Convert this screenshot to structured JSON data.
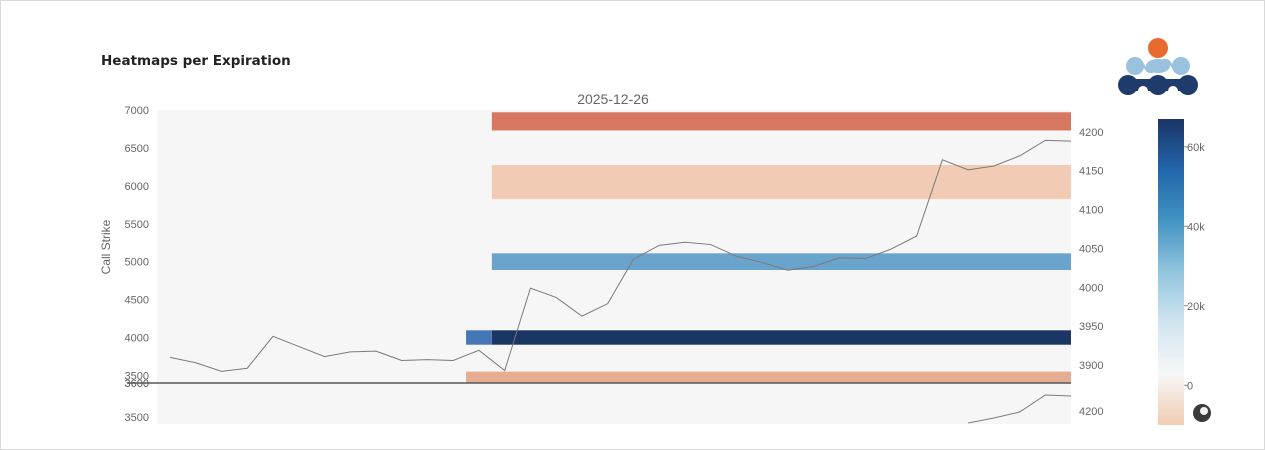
{
  "section_title": "Heatmaps per Expiration",
  "logo": {
    "name": "brand-logo"
  },
  "colors": {
    "plot_bg": "#f6f6f6",
    "line": "#7a7a7a",
    "axis_text": "#666666",
    "divider": "#555555"
  },
  "chart_data": {
    "type": "heatmap",
    "title": "2025-12-26",
    "ylabel": "Call Strike",
    "ylim": [
      3400,
      7000
    ],
    "y_ticks": [
      "7000",
      "6500",
      "6000",
      "5500",
      "5000",
      "4500",
      "4000",
      "3500"
    ],
    "y2lim": [
      3877,
      4228
    ],
    "y2_ticks": [
      "4200",
      "4150",
      "4100",
      "4050",
      "4000",
      "3950",
      "3900"
    ],
    "colorbar": {
      "min": -10000,
      "max": 67000,
      "ticks": [
        "0",
        "20k",
        "40k",
        "60k"
      ],
      "colors": [
        "#f0cbb3",
        "#f7f7f7",
        "#d1e5f0",
        "#92c5de",
        "#4393c3",
        "#2166ac",
        "#1c3566"
      ]
    },
    "strike_bands": [
      {
        "strike": 6850,
        "height": 240,
        "value": -40000,
        "start": 13,
        "color": "#d6775f"
      },
      {
        "strike": 6050,
        "height": 450,
        "value": -8000,
        "start": 13,
        "color": "#f2cbb4"
      },
      {
        "strike": 5000,
        "height": 220,
        "value": 32000,
        "start": 13,
        "color": "#6aa3cc"
      },
      {
        "strike": 4000,
        "height": 190,
        "value": 65000,
        "start": 13,
        "color": "#1b3564"
      },
      {
        "strike": 4000,
        "height": 190,
        "value": 50000,
        "start": 12,
        "end": 13,
        "color": "#4576b5"
      },
      {
        "strike": 3500,
        "height": 100,
        "value": -15000,
        "start": 12,
        "color": "#e5ad91"
      },
      {
        "strike": 3450,
        "height": 100,
        "value": -15000,
        "start": 12,
        "color": "#e5ad91"
      }
    ],
    "underlying": [
      3910,
      3903,
      3892,
      3896,
      3937,
      3924,
      3911,
      3917,
      3918,
      3906,
      3907,
      3906,
      3919,
      3893,
      3999,
      3987,
      3963,
      3979,
      4036,
      4054,
      4058,
      4055,
      4040,
      4032,
      4022,
      4027,
      4038,
      4037,
      4049,
      4066,
      4164,
      4151,
      4156,
      4169,
      4189,
      4188
    ],
    "second_panel": {
      "y_tick": "3500",
      "y2_tick": "4200",
      "strike_divider": "3600",
      "underlying_tail": [
        4171,
        4176,
        4182,
        4199,
        4198
      ]
    }
  }
}
